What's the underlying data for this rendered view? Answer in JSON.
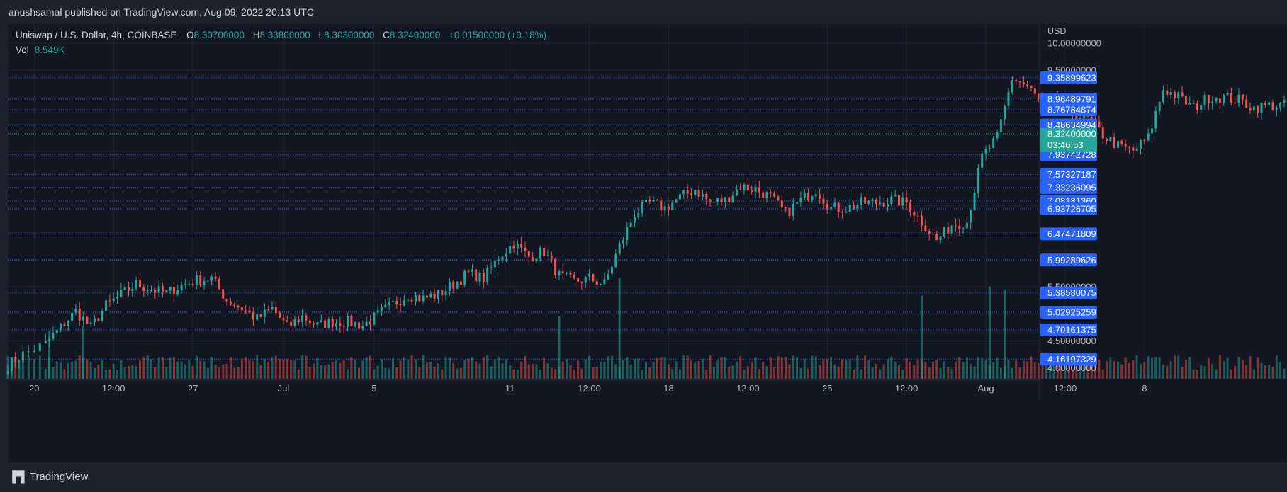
{
  "header": {
    "published": "anushsamal published on TradingView.com, Aug 09, 2022 20:13 UTC"
  },
  "legend": {
    "symbol": "Uniswap / U.S. Dollar, 4h, COINBASE",
    "open_label": "O",
    "open": "8.30700000",
    "high_label": "H",
    "high": "8.33800000",
    "low_label": "L",
    "low": "8.30300000",
    "close_label": "C",
    "close": "8.32400000",
    "change": "+0.01500000 (+0.18%)",
    "vol_label": "Vol",
    "vol": "8.549K"
  },
  "footer": {
    "brand": "TradingView"
  },
  "colors": {
    "bg": "#131722",
    "up": "#26a69a",
    "down": "#ef5350",
    "level_line": "#2962ff",
    "badge": "#2962ff"
  },
  "chart_data": {
    "type": "candlestick",
    "currency": "USD",
    "ylim": [
      3.8,
      10.35
    ],
    "price_ticks": [
      "10.00000000",
      "9.50000000",
      "5.50000000",
      "4.50000000",
      "4.00000000"
    ],
    "x_ticks": [
      "20",
      "12:00",
      "27",
      "Jul",
      "5",
      "11",
      "12:00",
      "18",
      "12:00",
      "25",
      "12:00",
      "Aug",
      "12:00",
      "8"
    ],
    "x_tick_dates": [
      "2022-06-20",
      "2022-06-23 12:00",
      "2022-06-27",
      "2022-07-01",
      "2022-07-05",
      "2022-07-11",
      "2022-07-14 12:00",
      "2022-07-18",
      "2022-07-21 12:00",
      "2022-07-25",
      "2022-07-28 12:00",
      "2022-08-01",
      "2022-08-04 12:00",
      "2022-08-08"
    ],
    "levels": [
      "9.35899623",
      "8.96489791",
      "8.76784874",
      "8.48634994",
      "7.93742728",
      "7.57327187",
      "7.33236095",
      "7.08181360",
      "6.93726705",
      "6.47471809",
      "5.99289626",
      "5.38580075",
      "5.02925259",
      "4.70161375",
      "4.16197329"
    ],
    "last_price": "8.32400000",
    "countdown": "03:46:53",
    "path_anchors": [
      {
        "date": "2022-06-18 20:00",
        "price": 4.05
      },
      {
        "date": "2022-06-19 12:00",
        "price": 4.25
      },
      {
        "date": "2022-06-20 12:00",
        "price": 4.45
      },
      {
        "date": "2022-06-21 04:00",
        "price": 4.75
      },
      {
        "date": "2022-06-21 20:00",
        "price": 5.05
      },
      {
        "date": "2022-06-22 12:00",
        "price": 4.75
      },
      {
        "date": "2022-06-23 04:00",
        "price": 5.15
      },
      {
        "date": "2022-06-23 20:00",
        "price": 5.35
      },
      {
        "date": "2022-06-24 12:00",
        "price": 5.55
      },
      {
        "date": "2022-06-25 04:00",
        "price": 5.45
      },
      {
        "date": "2022-06-25 20:00",
        "price": 5.38
      },
      {
        "date": "2022-06-26 12:00",
        "price": 5.52
      },
      {
        "date": "2022-06-27 04:00",
        "price": 5.62
      },
      {
        "date": "2022-06-27 20:00",
        "price": 5.65
      },
      {
        "date": "2022-06-28 12:00",
        "price": 5.25
      },
      {
        "date": "2022-06-29 04:00",
        "price": 5.1
      },
      {
        "date": "2022-06-29 20:00",
        "price": 4.9
      },
      {
        "date": "2022-06-30 12:00",
        "price": 5.1
      },
      {
        "date": "2022-07-01 04:00",
        "price": 4.75
      },
      {
        "date": "2022-07-01 20:00",
        "price": 4.95
      },
      {
        "date": "2022-07-02 12:00",
        "price": 4.78
      },
      {
        "date": "2022-07-03 04:00",
        "price": 4.85
      },
      {
        "date": "2022-07-03 20:00",
        "price": 4.85
      },
      {
        "date": "2022-07-04 12:00",
        "price": 4.78
      },
      {
        "date": "2022-07-05 04:00",
        "price": 4.98
      },
      {
        "date": "2022-07-05 20:00",
        "price": 5.18
      },
      {
        "date": "2022-07-06 12:00",
        "price": 5.35
      },
      {
        "date": "2022-07-07 04:00",
        "price": 5.28
      },
      {
        "date": "2022-07-07 20:00",
        "price": 5.35
      },
      {
        "date": "2022-07-08 12:00",
        "price": 5.55
      },
      {
        "date": "2022-07-09 04:00",
        "price": 5.75
      },
      {
        "date": "2022-07-09 20:00",
        "price": 5.65
      },
      {
        "date": "2022-07-10 12:00",
        "price": 6.05
      },
      {
        "date": "2022-07-11 04:00",
        "price": 6.3
      },
      {
        "date": "2022-07-11 20:00",
        "price": 6.05
      },
      {
        "date": "2022-07-12 12:00",
        "price": 6.15
      },
      {
        "date": "2022-07-13 04:00",
        "price": 5.7
      },
      {
        "date": "2022-07-13 20:00",
        "price": 5.6
      },
      {
        "date": "2022-07-14 12:00",
        "price": 5.65
      },
      {
        "date": "2022-07-15 04:00",
        "price": 5.55
      },
      {
        "date": "2022-07-15 20:00",
        "price": 6.25
      },
      {
        "date": "2022-07-16 12:00",
        "price": 6.85
      },
      {
        "date": "2022-07-17 04:00",
        "price": 7.05
      },
      {
        "date": "2022-07-17 20:00",
        "price": 6.95
      },
      {
        "date": "2022-07-18 12:00",
        "price": 7.15
      },
      {
        "date": "2022-07-19 04:00",
        "price": 7.3
      },
      {
        "date": "2022-07-19 20:00",
        "price": 7.05
      },
      {
        "date": "2022-07-20 12:00",
        "price": 7.1
      },
      {
        "date": "2022-07-21 04:00",
        "price": 7.35
      },
      {
        "date": "2022-07-21 20:00",
        "price": 7.3
      },
      {
        "date": "2022-07-22 12:00",
        "price": 7.15
      },
      {
        "date": "2022-07-23 04:00",
        "price": 6.85
      },
      {
        "date": "2022-07-23 20:00",
        "price": 7.1
      },
      {
        "date": "2022-07-24 12:00",
        "price": 7.3
      },
      {
        "date": "2022-07-25 04:00",
        "price": 6.95
      },
      {
        "date": "2022-07-25 20:00",
        "price": 6.95
      },
      {
        "date": "2022-07-26 12:00",
        "price": 7.05
      },
      {
        "date": "2022-07-27 04:00",
        "price": 7.05
      },
      {
        "date": "2022-07-27 20:00",
        "price": 7.1
      },
      {
        "date": "2022-07-28 12:00",
        "price": 7.05
      },
      {
        "date": "2022-07-29 04:00",
        "price": 6.7
      },
      {
        "date": "2022-07-29 20:00",
        "price": 6.35
      },
      {
        "date": "2022-07-30 12:00",
        "price": 6.65
      },
      {
        "date": "2022-07-31 04:00",
        "price": 6.7
      },
      {
        "date": "2022-07-31 20:00",
        "price": 7.9
      },
      {
        "date": "2022-08-01 12:00",
        "price": 8.25
      },
      {
        "date": "2022-08-02 04:00",
        "price": 9.35
      },
      {
        "date": "2022-08-02 20:00",
        "price": 9.2
      },
      {
        "date": "2022-08-03 12:00",
        "price": 8.85
      },
      {
        "date": "2022-08-04 04:00",
        "price": 8.95
      },
      {
        "date": "2022-08-04 20:00",
        "price": 8.7
      },
      {
        "date": "2022-08-05 12:00",
        "price": 8.6
      },
      {
        "date": "2022-08-06 04:00",
        "price": 8.3
      },
      {
        "date": "2022-08-06 20:00",
        "price": 8.1
      },
      {
        "date": "2022-08-07 12:00",
        "price": 8.0
      },
      {
        "date": "2022-08-08 04:00",
        "price": 8.25
      },
      {
        "date": "2022-08-08 20:00",
        "price": 9.15
      },
      {
        "date": "2022-08-09 12:00",
        "price": 9.0
      },
      {
        "date": "2022-08-10 04:00",
        "price": 8.8
      },
      {
        "date": "2022-08-10 20:00",
        "price": 9.0
      },
      {
        "date": "2022-08-11 12:00",
        "price": 9.0
      },
      {
        "date": "2022-08-12 04:00",
        "price": 8.95
      },
      {
        "date": "2022-08-12 20:00",
        "price": 8.8
      },
      {
        "date": "2022-08-13 12:00",
        "price": 8.85
      },
      {
        "date": "2022-08-14 04:00",
        "price": 8.85
      },
      {
        "date": "2022-08-14 20:00",
        "price": 9.05
      },
      {
        "date": "2022-08-15 12:00",
        "price": 8.8
      },
      {
        "date": "2022-08-16 04:00",
        "price": 8.3
      },
      {
        "date": "2022-08-16 20:00",
        "price": 8.33
      }
    ],
    "volume_spikes": [
      {
        "date": "2022-06-20 16:00",
        "volume": 1.6
      },
      {
        "date": "2022-06-22 04:00",
        "volume": 1.8
      },
      {
        "date": "2022-07-13 04:00",
        "volume": 2.1
      },
      {
        "date": "2022-07-15 20:00",
        "volume": 3.4
      },
      {
        "date": "2022-07-29 04:00",
        "volume": 2.8
      },
      {
        "date": "2022-08-01 04:00",
        "volume": 3.1
      },
      {
        "date": "2022-08-01 20:00",
        "volume": 3.0
      }
    ]
  }
}
